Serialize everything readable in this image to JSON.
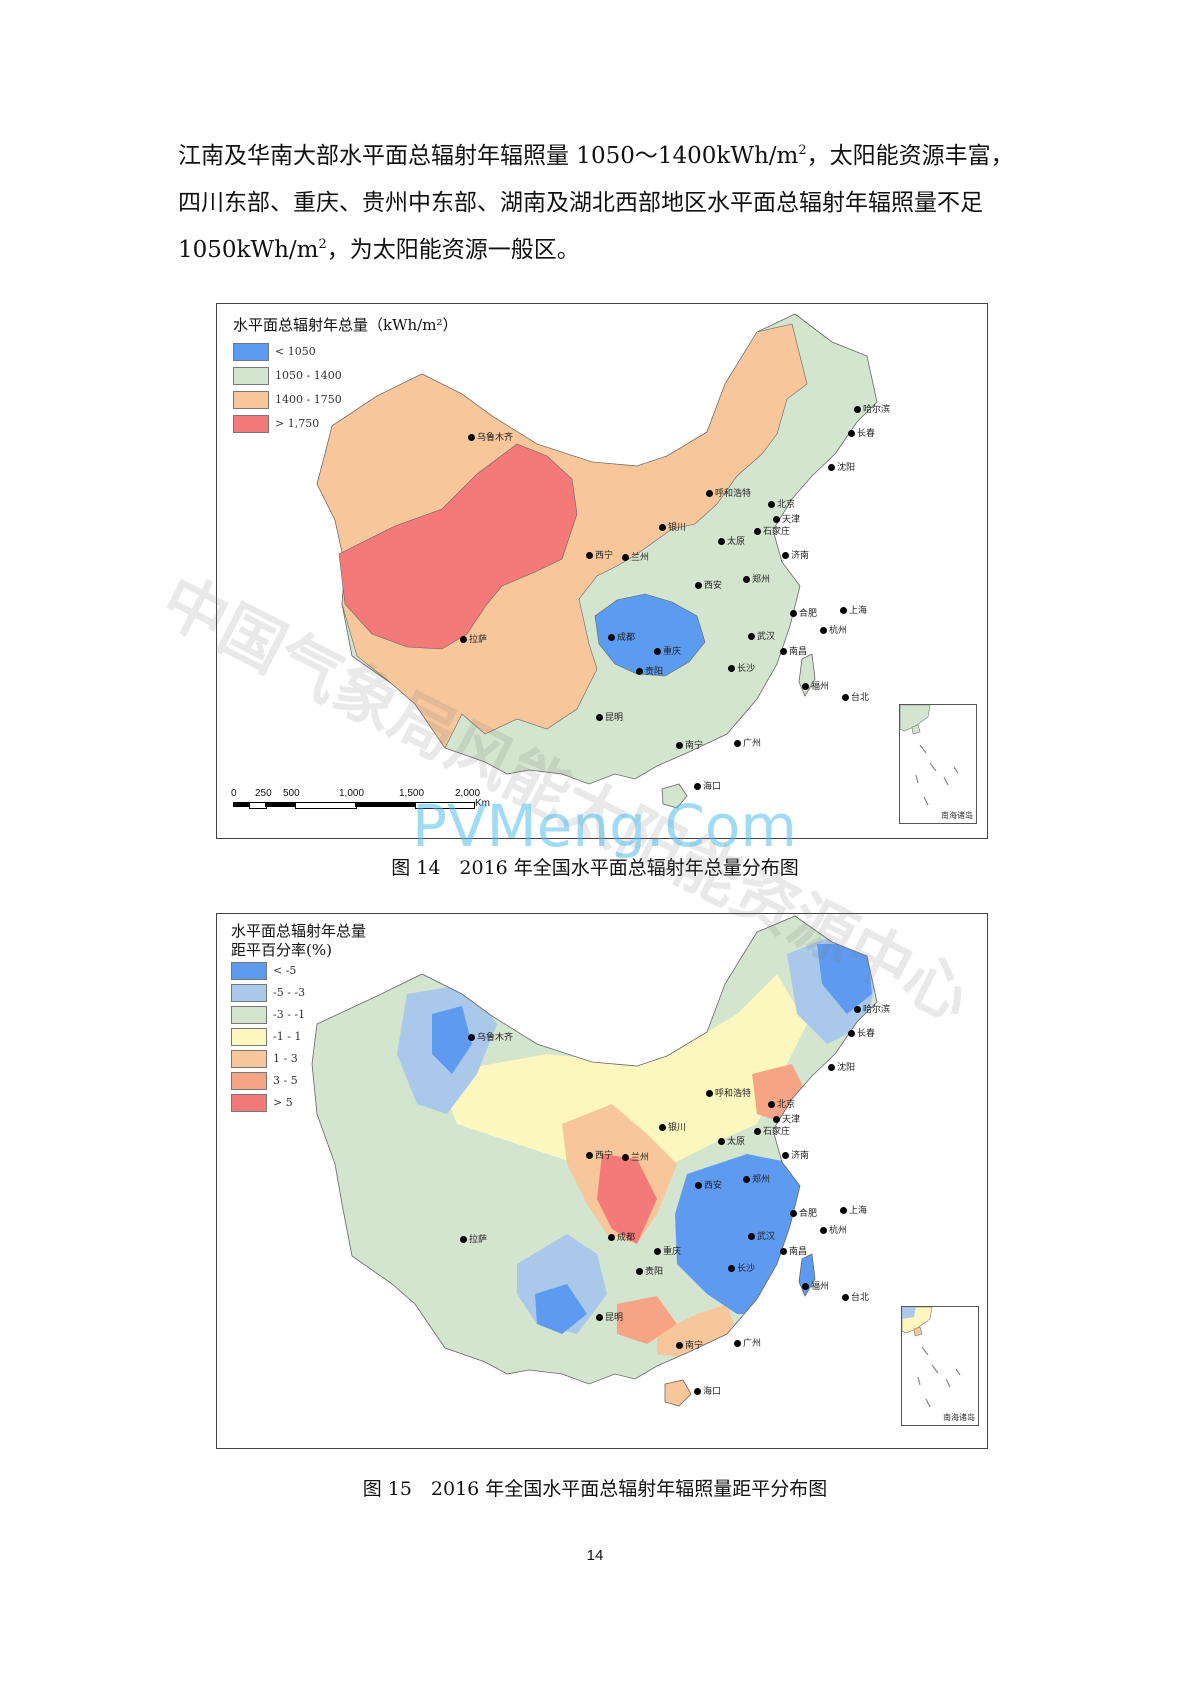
{
  "paragraph": {
    "line1_pre": "江南及华南大部水平面总辐射年辐照量 1050～1400kWh/m",
    "line1_sup": "2",
    "line1_post": "，太阳能资源丰富，",
    "line2": "四川东部、重庆、贵州中东部、湖南及湖北西部地区水平面总辐射年辐照量不足",
    "line3_pre": "1050kWh/m",
    "line3_sup": "2",
    "line3_post": "，为太阳能资源一般区。"
  },
  "figure14": {
    "legend_title": "水平面总辐射年总量（kWh/m²）",
    "legend": [
      {
        "label": "< 1050",
        "color": "#5b9cf0"
      },
      {
        "label": "1050 - 1400",
        "color": "#d3e4cf"
      },
      {
        "label": "1400 - 1750",
        "color": "#f7c79b"
      },
      {
        "label": "> 1,750",
        "color": "#f37a78"
      }
    ],
    "scale_ticks": [
      "0",
      "250",
      "500",
      "1,000",
      "1,500",
      "2,000"
    ],
    "scale_unit": "Km",
    "cities": [
      "乌鲁木齐",
      "哈尔滨",
      "长春",
      "沈阳",
      "呼和浩特",
      "北京",
      "天津",
      "银川",
      "太原",
      "石家庄",
      "西宁",
      "兰州",
      "济南",
      "西安",
      "郑州",
      "合肥",
      "上海",
      "拉萨",
      "成都",
      "重庆",
      "武汉",
      "杭州",
      "南昌",
      "长沙",
      "贵阳",
      "福州",
      "台北",
      "昆明",
      "南宁",
      "广州",
      "海口"
    ],
    "inset_label": "南海诸岛",
    "caption": "图 14　2016 年全国水平面总辐射年总量分布图"
  },
  "figure15": {
    "legend_title_1": "水平面总辐射年总量",
    "legend_title_2": "距平百分率(%)",
    "legend": [
      {
        "label": "< -5",
        "color": "#5e9bf0"
      },
      {
        "label": "-5 - -3",
        "color": "#a9c8ea"
      },
      {
        "label": "-3 - -1",
        "color": "#d3e4cf"
      },
      {
        "label": "-1 - 1",
        "color": "#fbf7bf"
      },
      {
        "label": "1 - 3",
        "color": "#f7c79b"
      },
      {
        "label": "3 - 5",
        "color": "#f5a585"
      },
      {
        "label": "> 5",
        "color": "#f37a78"
      }
    ],
    "cities": [
      "乌鲁木齐",
      "哈尔滨",
      "长春",
      "沈阳",
      "呼和浩特",
      "北京",
      "天津",
      "银川",
      "太原",
      "石家庄",
      "西宁",
      "兰州",
      "济南",
      "西安",
      "郑州",
      "合肥",
      "上海",
      "拉萨",
      "成都",
      "重庆",
      "武汉",
      "杭州",
      "南昌",
      "长沙",
      "贵阳",
      "福州",
      "台北",
      "昆明",
      "南宁",
      "广州",
      "海口"
    ],
    "inset_label": "南海诸岛",
    "caption": "图 15　2016 年全国水平面总辐射年辐照量距平分布图"
  },
  "watermark": {
    "text1": "中国气象局风能太阳能资源中心",
    "text2": "PVMeng.Com"
  },
  "page_number": "14"
}
